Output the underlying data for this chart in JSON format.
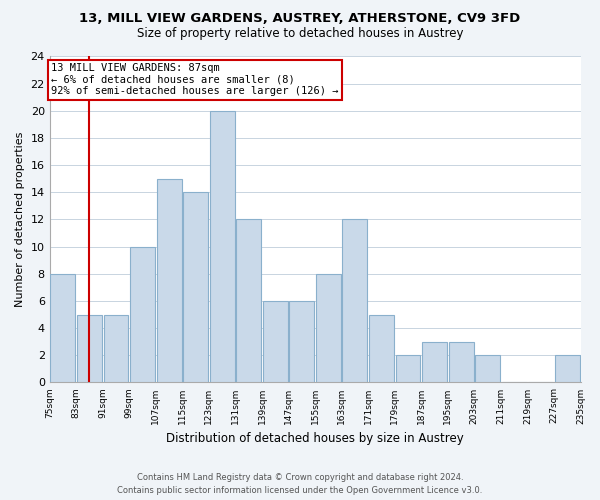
{
  "title": "13, MILL VIEW GARDENS, AUSTREY, ATHERSTONE, CV9 3FD",
  "subtitle": "Size of property relative to detached houses in Austrey",
  "xlabel": "Distribution of detached houses by size in Austrey",
  "ylabel": "Number of detached properties",
  "bin_edges": [
    75,
    83,
    91,
    99,
    107,
    115,
    123,
    131,
    139,
    147,
    155,
    163,
    171,
    179,
    187,
    195,
    203,
    211,
    219,
    227,
    235
  ],
  "counts": [
    8,
    5,
    5,
    10,
    15,
    14,
    20,
    12,
    6,
    6,
    8,
    12,
    5,
    2,
    3,
    3,
    2,
    0,
    0,
    2
  ],
  "bar_color": "#c9d9e9",
  "bar_edge_color": "#8ab0cc",
  "property_size": 87,
  "vline_color": "#cc0000",
  "annotation_line1": "13 MILL VIEW GARDENS: 87sqm",
  "annotation_line2": "← 6% of detached houses are smaller (8)",
  "annotation_line3": "92% of semi-detached houses are larger (126) →",
  "annotation_box_edge": "#cc0000",
  "annotation_box_face": "white",
  "ylim": [
    0,
    24
  ],
  "yticks": [
    0,
    2,
    4,
    6,
    8,
    10,
    12,
    14,
    16,
    18,
    20,
    22,
    24
  ],
  "footer_line1": "Contains HM Land Registry data © Crown copyright and database right 2024.",
  "footer_line2": "Contains public sector information licensed under the Open Government Licence v3.0.",
  "bg_color": "#f0f4f8",
  "plot_bg_color": "white",
  "grid_color": "#c8d4e0"
}
